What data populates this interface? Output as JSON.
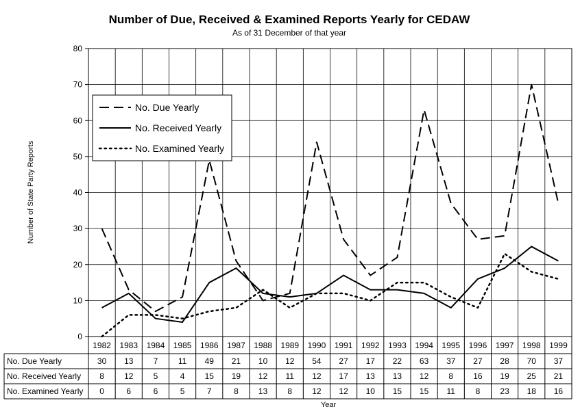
{
  "chart_data": {
    "type": "line",
    "title": "Number of Due, Received & Examined Reports Yearly for CEDAW",
    "subtitle": "As of 31 December of that  year",
    "xlabel": "Year",
    "ylabel": "Number of State Party Reports",
    "ylim": [
      0,
      80
    ],
    "yticks": [
      "0",
      "10",
      "20",
      "30",
      "40",
      "50",
      "60",
      "70",
      "80"
    ],
    "categories": [
      "1982",
      "1983",
      "1984",
      "1985",
      "1986",
      "1987",
      "1988",
      "1989",
      "1990",
      "1991",
      "1992",
      "1993",
      "1994",
      "1995",
      "1996",
      "1997",
      "1998",
      "1999"
    ],
    "series": [
      {
        "name": "No. Due Yearly",
        "style": "dashed",
        "values": [
          30,
          13,
          7,
          11,
          49,
          21,
          10,
          12,
          54,
          27,
          17,
          22,
          63,
          37,
          27,
          28,
          70,
          37
        ]
      },
      {
        "name": "No. Received Yearly",
        "style": "solid",
        "values": [
          8,
          12,
          5,
          4,
          15,
          19,
          12,
          11,
          12,
          17,
          13,
          13,
          12,
          8,
          16,
          19,
          25,
          21
        ]
      },
      {
        "name": "No. Examined Yearly",
        "style": "dotted",
        "values": [
          0,
          6,
          6,
          5,
          7,
          8,
          13,
          8,
          12,
          12,
          10,
          15,
          15,
          11,
          8,
          23,
          18,
          16
        ]
      }
    ],
    "legend": [
      "No. Due Yearly",
      "No. Received Yearly",
      "No. Examined Yearly"
    ],
    "grid": true
  }
}
